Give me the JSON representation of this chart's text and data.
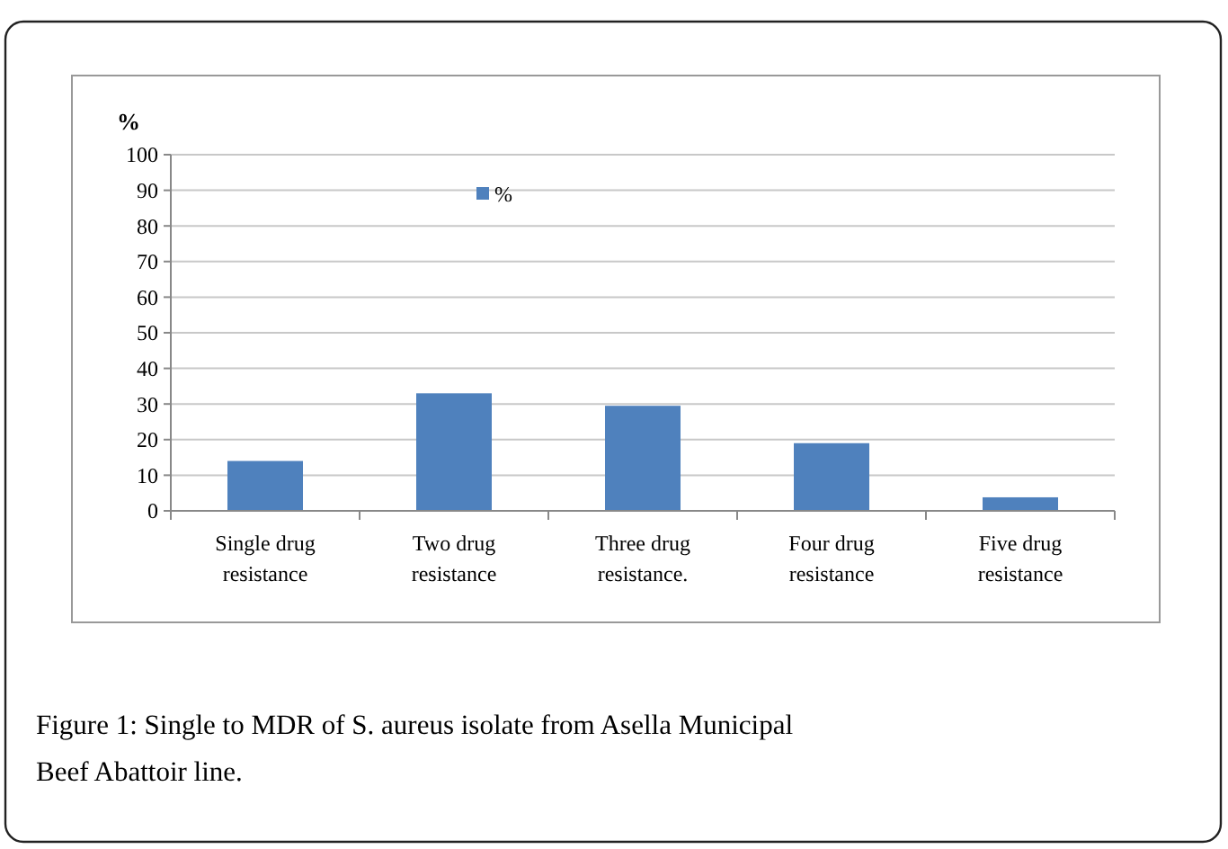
{
  "chart_data": {
    "type": "bar",
    "ylabel": "%",
    "categories": [
      "Single drug resistance",
      "Two drug resistance",
      "Three drug resistance.",
      "Four drug resistance",
      "Five drug resistance"
    ],
    "series": [
      {
        "name": "%",
        "color": "#4f81bd",
        "values": [
          14,
          33,
          29.5,
          19,
          3.8
        ]
      }
    ],
    "ylim": [
      0,
      100
    ],
    "yticks": [
      0,
      10,
      20,
      30,
      40,
      50,
      60,
      70,
      80,
      90,
      100
    ],
    "grid": "y",
    "legend": "top",
    "annotations": [
      "Figure 1: Single to MDR of S. aureus isolate from Asella Municipal Beef Abattoir line."
    ]
  }
}
